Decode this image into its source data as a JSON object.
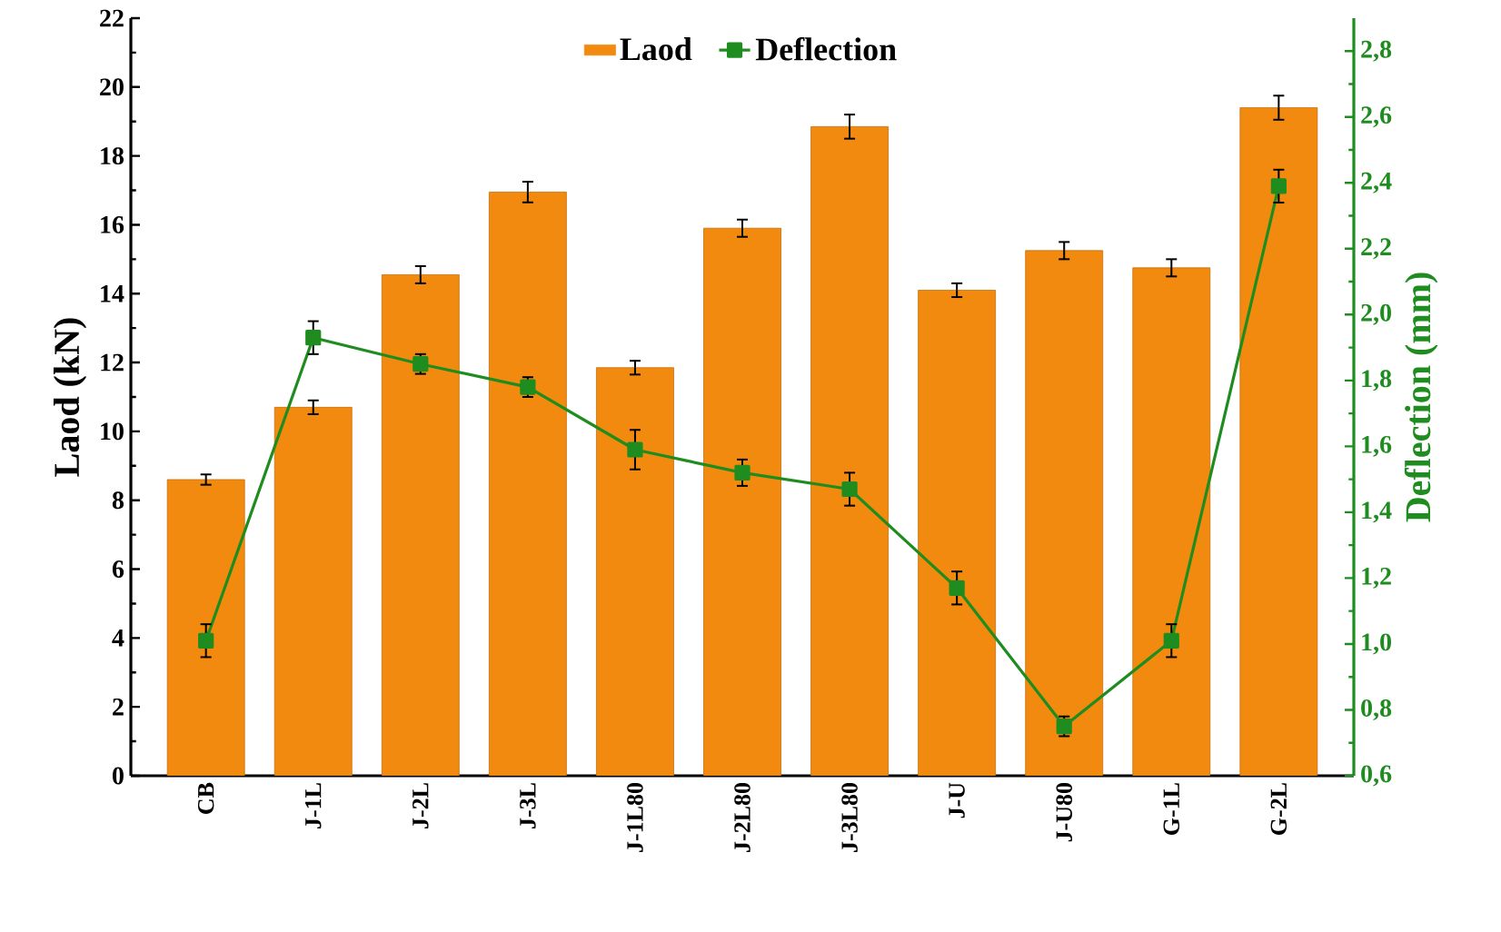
{
  "chart_data": {
    "type": "bar",
    "ylabel": "Laod (kN)",
    "y2label": "Deflection (mm)",
    "categories": [
      "CB",
      "J-1L",
      "J-2L",
      "J-3L",
      "J-1L80",
      "J-2L80",
      "J-3L80",
      "J-U",
      "J-U80",
      "G-1L",
      "G-2L"
    ],
    "series": [
      {
        "name": "Laod",
        "color": "#f28a10",
        "values": [
          8.6,
          10.7,
          14.55,
          16.95,
          11.85,
          15.9,
          18.85,
          14.1,
          15.25,
          14.75,
          19.4
        ],
        "errors": [
          0.15,
          0.2,
          0.25,
          0.3,
          0.2,
          0.25,
          0.35,
          0.2,
          0.25,
          0.25,
          0.35
        ]
      },
      {
        "name": "Deflection",
        "type": "line",
        "axis": "y2",
        "color": "#1e8c1e",
        "values": [
          1.01,
          1.93,
          1.85,
          1.78,
          1.59,
          1.52,
          1.47,
          1.17,
          0.75,
          1.01,
          2.39
        ],
        "errors": [
          0.05,
          0.05,
          0.03,
          0.03,
          0.06,
          0.04,
          0.05,
          0.05,
          0.03,
          0.05,
          0.05
        ]
      }
    ],
    "ylim": [
      0,
      22
    ],
    "yticks": [
      0,
      2,
      4,
      6,
      8,
      10,
      12,
      14,
      16,
      18,
      20,
      22
    ],
    "y2lim": [
      0.6,
      2.9
    ],
    "y2ticks": [
      {
        "value": 0.6,
        "label": "0,6"
      },
      {
        "value": 0.8,
        "label": "0,8"
      },
      {
        "value": 1.0,
        "label": "1,0"
      },
      {
        "value": 1.2,
        "label": "1,2"
      },
      {
        "value": 1.4,
        "label": "1,4"
      },
      {
        "value": 1.6,
        "label": "1,6"
      },
      {
        "value": 1.8,
        "label": "1,8"
      },
      {
        "value": 2.0,
        "label": "2,0"
      },
      {
        "value": 2.2,
        "label": "2,2"
      },
      {
        "value": 2.4,
        "label": "2,4"
      },
      {
        "value": 2.6,
        "label": "2,6"
      },
      {
        "value": 2.8,
        "label": "2,8"
      }
    ],
    "legend": "top",
    "marker": "square",
    "line_style": "solid"
  }
}
